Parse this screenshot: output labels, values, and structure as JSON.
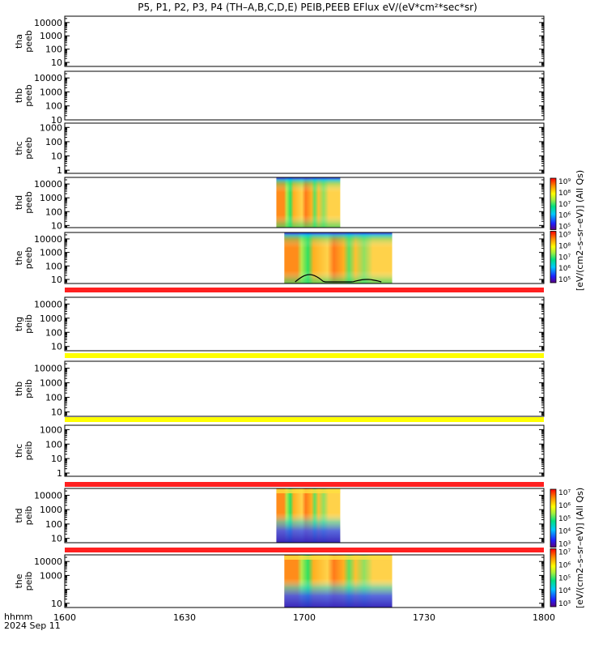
{
  "title": "P5, P1, P2, P3, P4 (TH–A,B,C,D,E) PEIB,PEEB EFlux eV/(eV*cm²*sec*sr)",
  "colors": {
    "flag_red": "#ff2020",
    "flag_yellow": "#ffff00",
    "frame": "#000000",
    "background": "#ffffff"
  },
  "x_axis": {
    "label_line1": "hhmm",
    "label_line2": "2024 Sep 11",
    "ticks": [
      "1600",
      "1630",
      "1700",
      "1730",
      "1800"
    ]
  },
  "colorbars": [
    {
      "id": "peeb",
      "label": "[eV/(cm2–s–sr–eV)] (All Qs)",
      "ticks": [
        "10⁵",
        "10⁶",
        "10⁷",
        "10⁸",
        "10⁹"
      ]
    },
    {
      "id": "peib",
      "label": "[eV/(cm2–s–sr–eV)] (All Qs)",
      "ticks": [
        "10³",
        "10⁴",
        "10⁵",
        "10⁶",
        "10⁷"
      ]
    }
  ],
  "chart_data": {
    "type": "heatmap",
    "x_range": [
      "16:00",
      "18:00"
    ],
    "y_scale": "log",
    "panels": [
      {
        "id": "thc_peeb_a",
        "ylabel_1": "tha",
        "ylabel_2": "peeb",
        "ylim": [
          5,
          30000
        ],
        "yticks": [
          "10",
          "100",
          "1000",
          "10000"
        ],
        "data_start": "",
        "data_end": "",
        "flag": "none",
        "has_curve": false
      },
      {
        "id": "thb_peeb",
        "ylabel_1": "thb",
        "ylabel_2": "peeb",
        "ylim": [
          10,
          30000
        ],
        "yticks": [
          "10",
          "100",
          "1000",
          "10000"
        ],
        "data_start": "",
        "data_end": "",
        "flag": "none",
        "has_curve": false
      },
      {
        "id": "thc_peeb",
        "ylabel_1": "thc",
        "ylabel_2": "peeb",
        "ylim": [
          0.6,
          2000
        ],
        "yticks": [
          "1",
          "10",
          "100",
          "1000"
        ],
        "data_start": "",
        "data_end": "",
        "flag": "none",
        "has_curve": false
      },
      {
        "id": "thd_peeb",
        "ylabel_1": "thd",
        "ylabel_2": "peeb",
        "ylim": [
          7,
          30000
        ],
        "yticks": [
          "10",
          "100",
          "1000",
          "10000"
        ],
        "data_start": "16:53",
        "data_end": "17:09",
        "flag": "none",
        "has_curve": false
      },
      {
        "id": "the_peeb",
        "ylabel_1": "the",
        "ylabel_2": "peeb",
        "ylim": [
          5,
          30000
        ],
        "yticks": [
          "10",
          "100",
          "1000",
          "10000"
        ],
        "data_start": "16:55",
        "data_end": "17:22",
        "flag": "red",
        "has_curve": true
      },
      {
        "id": "thg_peib",
        "ylabel_1": "thg",
        "ylabel_2": "peib",
        "ylim": [
          5,
          30000
        ],
        "yticks": [
          "10",
          "100",
          "1000",
          "10000"
        ],
        "data_start": "",
        "data_end": "",
        "flag": "yellow",
        "has_curve": false
      },
      {
        "id": "thb_peib",
        "ylabel_1": "thb",
        "ylabel_2": "peib",
        "ylim": [
          5,
          30000
        ],
        "yticks": [
          "10",
          "100",
          "1000",
          "10000"
        ],
        "data_start": "",
        "data_end": "",
        "flag": "yellow",
        "has_curve": false
      },
      {
        "id": "thc_peib",
        "ylabel_1": "thc",
        "ylabel_2": "peib",
        "ylim": [
          0.6,
          2000
        ],
        "yticks": [
          "1",
          "10",
          "100",
          "1000"
        ],
        "data_start": "",
        "data_end": "",
        "flag": "red",
        "has_curve": false
      },
      {
        "id": "thd_peib",
        "ylabel_1": "thd",
        "ylabel_2": "peib",
        "ylim": [
          5,
          30000
        ],
        "yticks": [
          "10",
          "100",
          "1000",
          "10000"
        ],
        "data_start": "16:53",
        "data_end": "17:09",
        "flag": "red",
        "has_curve": false
      },
      {
        "id": "the_peib",
        "ylabel_1": "the",
        "ylabel_2": "peib",
        "ylim": [
          5,
          30000
        ],
        "yticks": [
          "10",
          "1000",
          "10000"
        ],
        "data_start": "16:55",
        "data_end": "17:22",
        "flag": "none",
        "has_curve": false
      }
    ]
  }
}
